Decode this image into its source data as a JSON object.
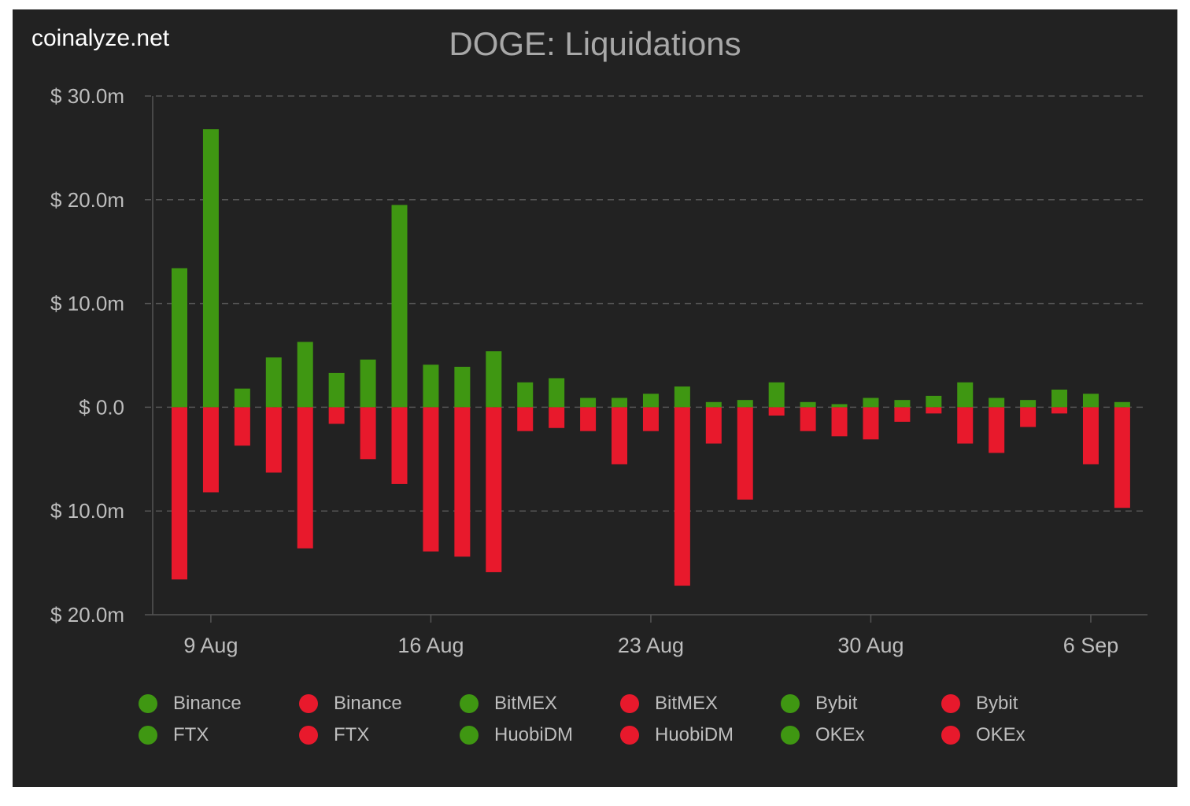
{
  "brand": "coinalyze.net",
  "colors": {
    "background": "#222222",
    "long": "#3f9712",
    "short": "#e8192c",
    "grid": "#555555",
    "axis_text": "#bdbdbd",
    "title_text": "#a8a8a8"
  },
  "legend": [
    {
      "label": "Binance",
      "color": "#3f9712"
    },
    {
      "label": "Binance",
      "color": "#e8192c"
    },
    {
      "label": "BitMEX",
      "color": "#3f9712"
    },
    {
      "label": "BitMEX",
      "color": "#e8192c"
    },
    {
      "label": "Bybit",
      "color": "#3f9712"
    },
    {
      "label": "Bybit",
      "color": "#e8192c"
    },
    {
      "label": "FTX",
      "color": "#3f9712"
    },
    {
      "label": "FTX",
      "color": "#e8192c"
    },
    {
      "label": "HuobiDM",
      "color": "#3f9712"
    },
    {
      "label": "HuobiDM",
      "color": "#e8192c"
    },
    {
      "label": "OKEx",
      "color": "#3f9712"
    },
    {
      "label": "OKEx",
      "color": "#e8192c"
    }
  ],
  "chart_data": {
    "type": "bar",
    "title": "DOGE: Liquidations",
    "xlabel": "",
    "ylabel": "",
    "ylim": [
      -20,
      30
    ],
    "y_ticks": [
      30,
      20,
      10,
      0,
      -10,
      -20
    ],
    "y_tick_labels": [
      "$ 30.0m",
      "$ 20.0m",
      "$ 10.0m",
      "$ 0.0",
      "$ 10.0m",
      "$ 20.0m"
    ],
    "x_ticks": [
      "9 Aug",
      "16 Aug",
      "23 Aug",
      "30 Aug",
      "6 Sep"
    ],
    "x_tick_dates": [
      "2021-08-09",
      "2021-08-16",
      "2021-08-23",
      "2021-08-30",
      "2021-09-06"
    ],
    "grid": true,
    "dates": [
      "2021-08-08",
      "2021-08-09",
      "2021-08-10",
      "2021-08-11",
      "2021-08-12",
      "2021-08-13",
      "2021-08-14",
      "2021-08-15",
      "2021-08-16",
      "2021-08-17",
      "2021-08-18",
      "2021-08-19",
      "2021-08-20",
      "2021-08-21",
      "2021-08-22",
      "2021-08-23",
      "2021-08-24",
      "2021-08-25",
      "2021-08-26",
      "2021-08-27",
      "2021-08-28",
      "2021-08-29",
      "2021-08-30",
      "2021-08-31",
      "2021-09-01",
      "2021-09-02",
      "2021-09-03",
      "2021-09-04",
      "2021-09-05",
      "2021-09-06",
      "2021-09-07"
    ],
    "series": [
      {
        "kind": "long",
        "values": [
          13.4,
          26.8,
          1.8,
          4.8,
          6.3,
          3.3,
          4.6,
          19.5,
          4.1,
          3.9,
          5.4,
          2.4,
          2.8,
          0.9,
          0.9,
          1.3,
          2.0,
          0.5,
          0.7,
          2.4,
          0.5,
          0.3,
          0.9,
          0.7,
          1.1,
          2.4,
          0.9,
          0.7,
          1.7,
          1.3,
          0.5
        ]
      },
      {
        "kind": "short",
        "values": [
          -16.6,
          -8.2,
          -3.7,
          -6.3,
          -13.6,
          -1.6,
          -5.0,
          -7.4,
          -13.9,
          -14.4,
          -15.9,
          -2.3,
          -2.0,
          -2.3,
          -5.5,
          -2.3,
          -17.2,
          -3.5,
          -8.9,
          -0.8,
          -2.3,
          -2.8,
          -3.1,
          -1.4,
          -0.6,
          -3.5,
          -4.4,
          -1.9,
          -0.6,
          -5.5,
          -9.7
        ]
      }
    ]
  }
}
